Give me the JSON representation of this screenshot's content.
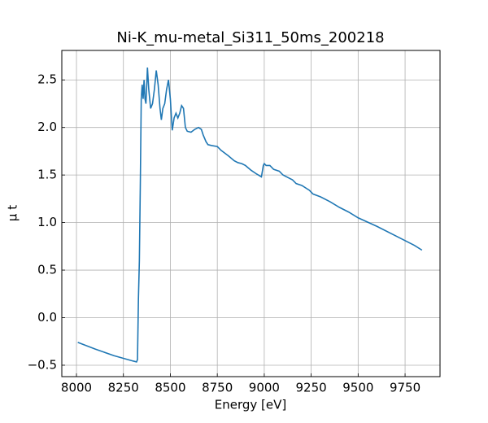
{
  "chart_data": {
    "type": "line",
    "title": "Ni-K_mu-metal_Si311_50ms_200218",
    "x_label": "Energy [eV]",
    "y_label": "μ t",
    "x": [
      8007,
      8100,
      8200,
      8300,
      8320,
      8325,
      8330,
      8335,
      8340,
      8345,
      8350,
      8355,
      8360,
      8365,
      8370,
      8378,
      8385,
      8395,
      8405,
      8415,
      8425,
      8435,
      8445,
      8452,
      8460,
      8470,
      8480,
      8490,
      8500,
      8510,
      8520,
      8530,
      8540,
      8550,
      8560,
      8570,
      8580,
      8590,
      8610,
      8630,
      8650,
      8665,
      8675,
      8690,
      8700,
      8720,
      8750,
      8770,
      8790,
      8810,
      8840,
      8860,
      8880,
      8900,
      8930,
      8960,
      8985,
      8995,
      9000,
      9010,
      9030,
      9050,
      9080,
      9100,
      9130,
      9150,
      9170,
      9200,
      9240,
      9260,
      9300,
      9350,
      9400,
      9450,
      9500,
      9600,
      9700,
      9800,
      9840
    ],
    "series": [
      {
        "name": "mu t",
        "color": "#1f77b4",
        "values": [
          -0.26,
          -0.33,
          -0.4,
          -0.455,
          -0.465,
          -0.44,
          0.2,
          0.6,
          1.4,
          2.3,
          2.45,
          2.3,
          2.5,
          2.3,
          2.25,
          2.63,
          2.4,
          2.2,
          2.25,
          2.4,
          2.6,
          2.45,
          2.2,
          2.08,
          2.2,
          2.25,
          2.4,
          2.5,
          2.3,
          1.97,
          2.1,
          2.15,
          2.1,
          2.15,
          2.23,
          2.2,
          2.0,
          1.96,
          1.95,
          1.98,
          2.0,
          1.98,
          1.92,
          1.85,
          1.82,
          1.81,
          1.8,
          1.76,
          1.73,
          1.7,
          1.65,
          1.63,
          1.62,
          1.6,
          1.55,
          1.51,
          1.48,
          1.6,
          1.62,
          1.6,
          1.6,
          1.56,
          1.54,
          1.5,
          1.47,
          1.45,
          1.41,
          1.39,
          1.34,
          1.3,
          1.27,
          1.22,
          1.16,
          1.11,
          1.05,
          0.96,
          0.86,
          0.76,
          0.71
        ]
      }
    ],
    "xlim": [
      7922,
      9936
    ],
    "ylim": [
      -0.62,
      2.81
    ],
    "xticks": [
      8000,
      8250,
      8500,
      8750,
      9000,
      9250,
      9500,
      9750
    ],
    "yticks": [
      {
        "value": -0.5,
        "label": "−0.5"
      },
      {
        "value": 0,
        "label": "0.0"
      },
      0.5,
      {
        "value": 1,
        "label": "1.0"
      },
      1.5,
      {
        "value": 2,
        "label": "2.0"
      },
      2.5
    ],
    "grid": true
  }
}
